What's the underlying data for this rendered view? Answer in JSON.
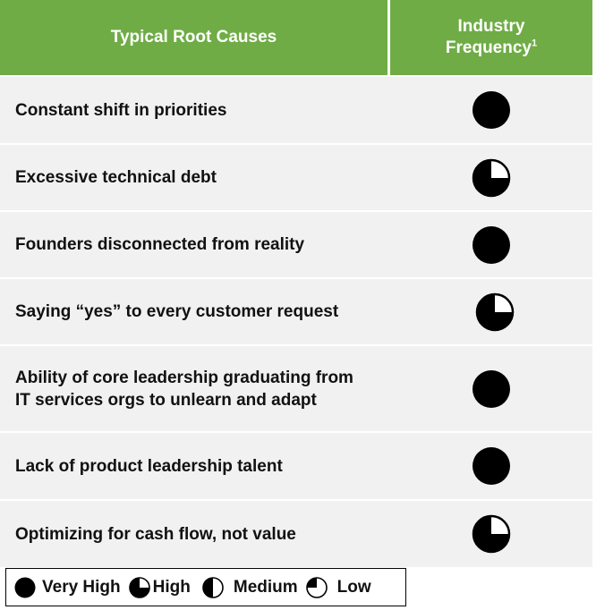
{
  "header": {
    "col1": "Typical Root Causes",
    "col2_line1": "Industry",
    "col2_line2": "Frequency",
    "col2_footnote": "1"
  },
  "rows": [
    {
      "label": "Constant shift in priorities",
      "level": "Very High"
    },
    {
      "label": "Excessive technical debt",
      "level": "High"
    },
    {
      "label": "Founders disconnected from reality",
      "level": "Very High"
    },
    {
      "label": "Saying “yes” to every customer request",
      "level": "High"
    },
    {
      "label": "Ability of core leadership graduating from IT services orgs to unlearn and adapt",
      "level": "Very High"
    },
    {
      "label": "Lack of product leadership talent",
      "level": "Very High"
    },
    {
      "label": "Optimizing for cash flow, not value",
      "level": "High"
    }
  ],
  "legend": {
    "very_high": "Very High",
    "high": "High",
    "medium": "Medium",
    "low": "Low"
  },
  "colors": {
    "header_bg": "#6fac46",
    "row_bg": "#f1f1f1",
    "ball_fill": "#000000"
  },
  "icons": {
    "very_high": "full-circle-icon",
    "high": "three-quarter-circle-icon",
    "medium": "half-circle-icon",
    "low": "quarter-circle-icon"
  }
}
